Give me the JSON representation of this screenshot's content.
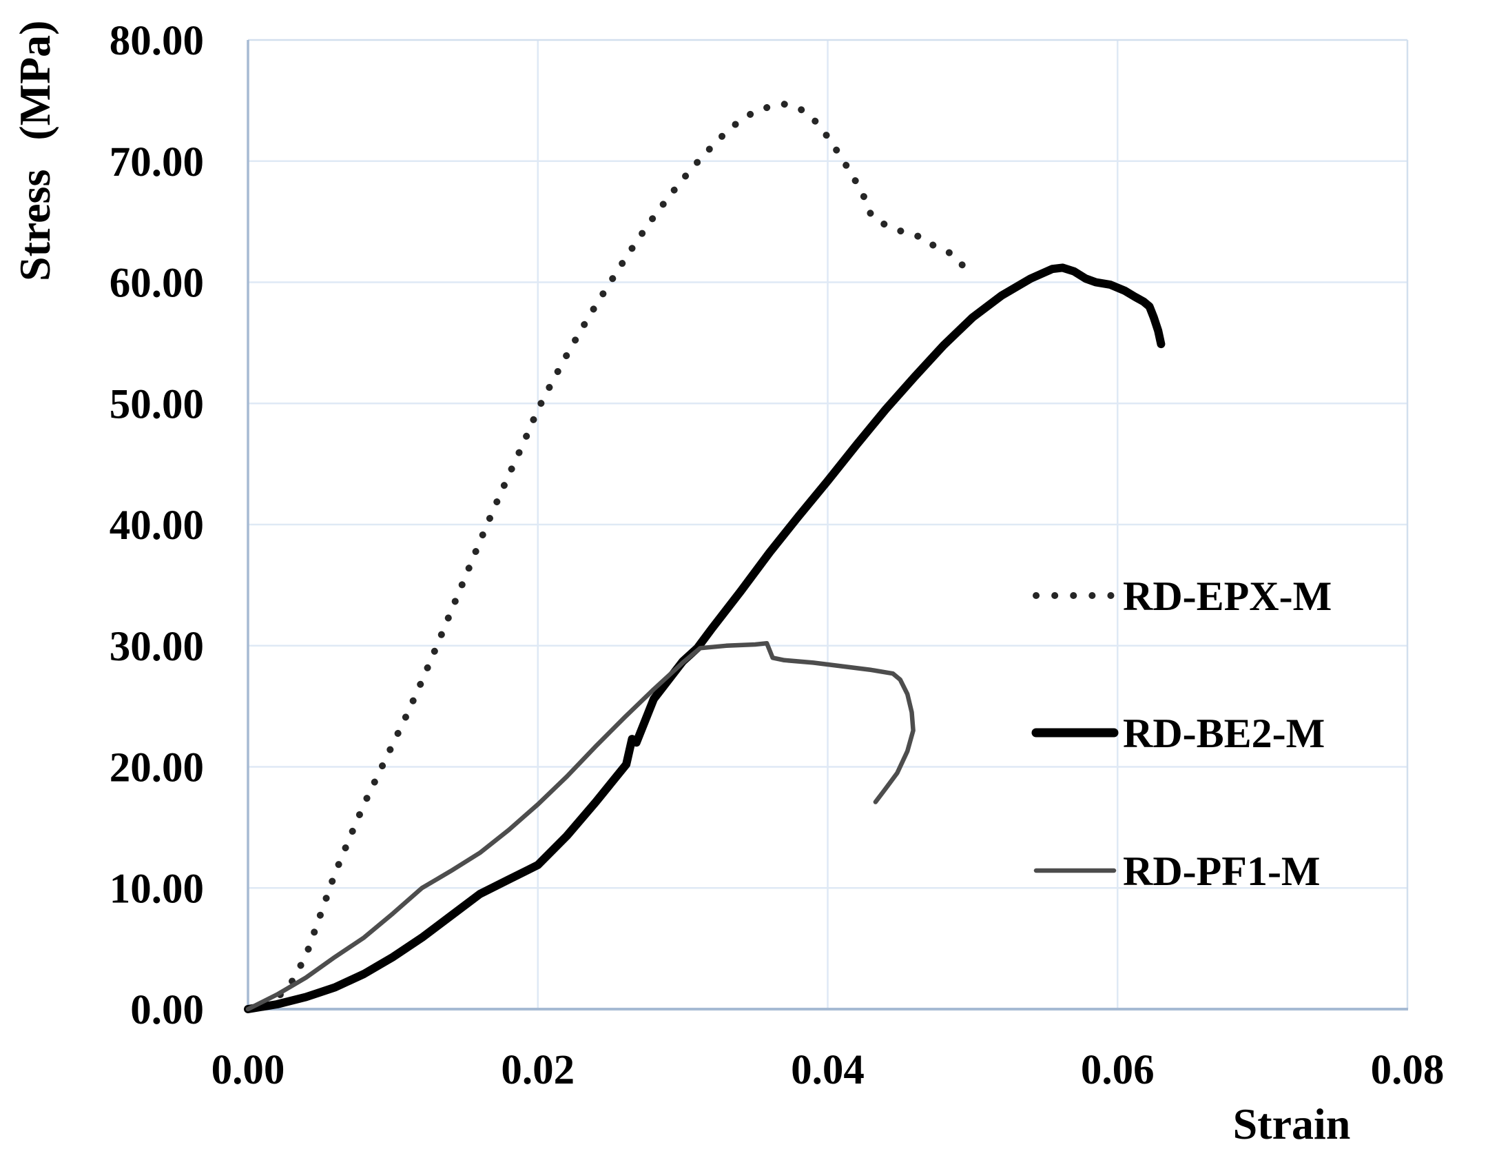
{
  "chart_data": {
    "type": "line",
    "title": "",
    "xlabel": "Strain",
    "ylabel": "Stress  (MPa)",
    "xlim": [
      0,
      0.08
    ],
    "ylim": [
      0,
      80
    ],
    "xticks": [
      "0.00",
      "0.02",
      "0.04",
      "0.06",
      "0.08"
    ],
    "xtick_values": [
      0,
      0.02,
      0.04,
      0.06,
      0.08
    ],
    "yticks": [
      "0.00",
      "10.00",
      "20.00",
      "30.00",
      "40.00",
      "50.00",
      "60.00",
      "70.00",
      "80.00"
    ],
    "ytick_values": [
      0,
      10,
      20,
      30,
      40,
      50,
      60,
      70,
      80
    ],
    "grid": true,
    "legend_position": "right-middle",
    "series": [
      {
        "name": "RD-EPX-M",
        "style": "dotted",
        "color": "#262626",
        "stroke_width": 10,
        "peak": {
          "strain": 0.037,
          "stress": 74.7
        },
        "points": [
          [
            0,
            0
          ],
          [
            0.001,
            0.3
          ],
          [
            0.002,
            0.9
          ],
          [
            0.003,
            2.2
          ],
          [
            0.004,
            4.4
          ],
          [
            0.005,
            7.8
          ],
          [
            0.006,
            11.2
          ],
          [
            0.007,
            14.1
          ],
          [
            0.008,
            16.9
          ],
          [
            0.009,
            19.4
          ],
          [
            0.01,
            21.9
          ],
          [
            0.011,
            24.4
          ],
          [
            0.012,
            27.1
          ],
          [
            0.013,
            29.9
          ],
          [
            0.014,
            32.8
          ],
          [
            0.015,
            35.7
          ],
          [
            0.016,
            38.6
          ],
          [
            0.017,
            41.4
          ],
          [
            0.018,
            44.1
          ],
          [
            0.019,
            46.7
          ],
          [
            0.02,
            49.5
          ],
          [
            0.021,
            51.8
          ],
          [
            0.022,
            54.0
          ],
          [
            0.023,
            56.1
          ],
          [
            0.024,
            58.1
          ],
          [
            0.025,
            60.0
          ],
          [
            0.026,
            61.9
          ],
          [
            0.027,
            63.7
          ],
          [
            0.028,
            65.4
          ],
          [
            0.029,
            67.0
          ],
          [
            0.03,
            68.5
          ],
          [
            0.031,
            69.9
          ],
          [
            0.032,
            71.2
          ],
          [
            0.033,
            72.4
          ],
          [
            0.034,
            73.4
          ],
          [
            0.035,
            74.1
          ],
          [
            0.036,
            74.5
          ],
          [
            0.037,
            74.7
          ],
          [
            0.038,
            74.4
          ],
          [
            0.039,
            73.5
          ],
          [
            0.04,
            72.0
          ],
          [
            0.041,
            70.2
          ],
          [
            0.042,
            68.2
          ],
          [
            0.0427,
            66.6
          ],
          [
            0.043,
            65.5
          ],
          [
            0.0437,
            64.9
          ],
          [
            0.0447,
            64.4
          ],
          [
            0.0455,
            64.0
          ],
          [
            0.0466,
            63.7
          ],
          [
            0.0472,
            63.1
          ],
          [
            0.0482,
            62.6
          ],
          [
            0.0489,
            62.0
          ],
          [
            0.0495,
            61.1
          ]
        ]
      },
      {
        "name": "RD-BE2-M",
        "style": "solid",
        "color": "#000000",
        "stroke_width": 12,
        "peak": {
          "strain": 0.0562,
          "stress": 61.2
        },
        "points": [
          [
            0,
            0
          ],
          [
            0.002,
            0.4
          ],
          [
            0.004,
            1.0
          ],
          [
            0.005,
            1.4
          ],
          [
            0.006,
            1.8
          ],
          [
            0.008,
            2.9
          ],
          [
            0.01,
            4.3
          ],
          [
            0.012,
            5.9
          ],
          [
            0.014,
            7.7
          ],
          [
            0.016,
            9.5
          ],
          [
            0.018,
            10.7
          ],
          [
            0.02,
            11.9
          ],
          [
            0.022,
            14.3
          ],
          [
            0.024,
            17.1
          ],
          [
            0.0261,
            20.2
          ],
          [
            0.0265,
            22.3
          ],
          [
            0.0268,
            22.0
          ],
          [
            0.028,
            25.6
          ],
          [
            0.03,
            28.7
          ],
          [
            0.031,
            29.8
          ],
          [
            0.032,
            31.4
          ],
          [
            0.034,
            34.5
          ],
          [
            0.036,
            37.7
          ],
          [
            0.038,
            40.7
          ],
          [
            0.04,
            43.6
          ],
          [
            0.042,
            46.6
          ],
          [
            0.044,
            49.5
          ],
          [
            0.046,
            52.2
          ],
          [
            0.048,
            54.8
          ],
          [
            0.05,
            57.1
          ],
          [
            0.052,
            58.9
          ],
          [
            0.054,
            60.3
          ],
          [
            0.0555,
            61.1
          ],
          [
            0.0562,
            61.2
          ],
          [
            0.057,
            60.9
          ],
          [
            0.0578,
            60.3
          ],
          [
            0.0585,
            60.0
          ],
          [
            0.0595,
            59.8
          ],
          [
            0.0605,
            59.3
          ],
          [
            0.0612,
            58.8
          ],
          [
            0.0618,
            58.4
          ],
          [
            0.0622,
            58.0
          ],
          [
            0.0625,
            57.1
          ],
          [
            0.0628,
            56.0
          ],
          [
            0.063,
            54.9
          ]
        ]
      },
      {
        "name": "RD-PF1-M",
        "style": "solid",
        "color": "#4d4d4d",
        "stroke_width": 6.5,
        "peak": {
          "strain": 0.0358,
          "stress": 30.2
        },
        "points": [
          [
            0,
            0
          ],
          [
            0.002,
            1.2
          ],
          [
            0.004,
            2.6
          ],
          [
            0.006,
            4.3
          ],
          [
            0.008,
            5.9
          ],
          [
            0.01,
            7.9
          ],
          [
            0.012,
            10.0
          ],
          [
            0.014,
            11.4
          ],
          [
            0.016,
            12.9
          ],
          [
            0.018,
            14.8
          ],
          [
            0.02,
            16.9
          ],
          [
            0.022,
            19.2
          ],
          [
            0.024,
            21.7
          ],
          [
            0.026,
            24.1
          ],
          [
            0.028,
            26.4
          ],
          [
            0.03,
            28.6
          ],
          [
            0.0312,
            29.8
          ],
          [
            0.033,
            30.0
          ],
          [
            0.035,
            30.1
          ],
          [
            0.0358,
            30.2
          ],
          [
            0.0362,
            29.0
          ],
          [
            0.037,
            28.8
          ],
          [
            0.039,
            28.6
          ],
          [
            0.041,
            28.3
          ],
          [
            0.043,
            28.0
          ],
          [
            0.0445,
            27.7
          ],
          [
            0.045,
            27.2
          ],
          [
            0.0455,
            26.0
          ],
          [
            0.0458,
            24.5
          ],
          [
            0.0459,
            23.0
          ],
          [
            0.0455,
            21.3
          ],
          [
            0.0448,
            19.5
          ],
          [
            0.044,
            18.2
          ],
          [
            0.0433,
            17.1
          ]
        ]
      }
    ]
  },
  "colors": {
    "background": "#ffffff",
    "gridline": "#dfe9f5",
    "axis_line": "#a6bad3",
    "outer_border": "#d2dfee",
    "text": "#000000"
  }
}
